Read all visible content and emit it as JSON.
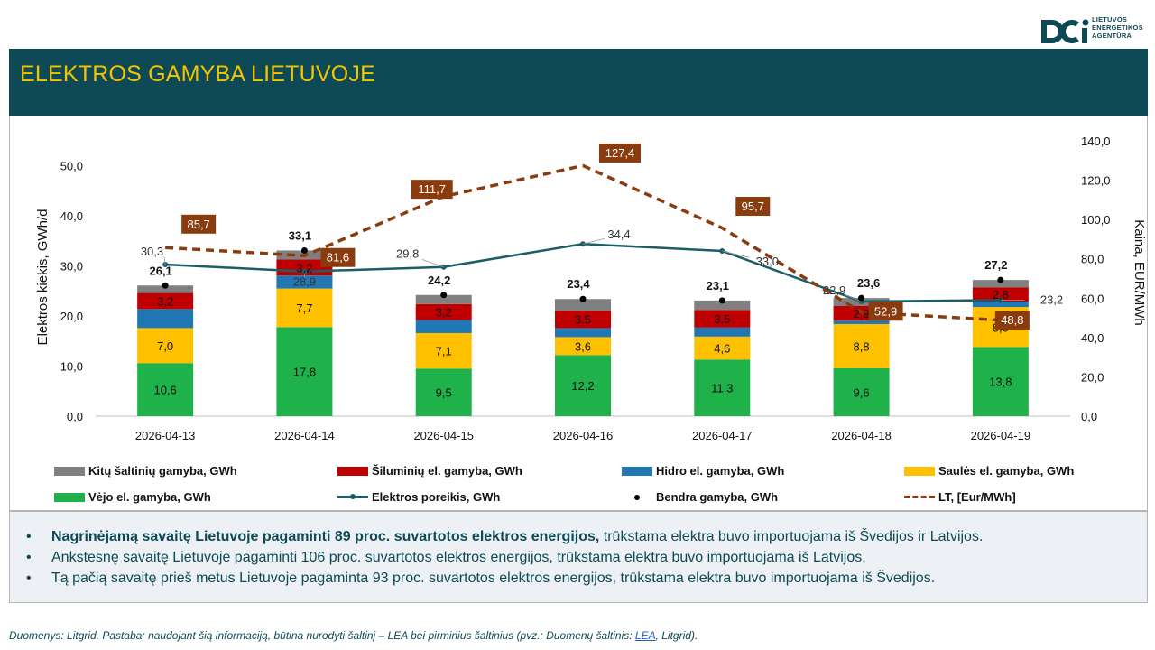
{
  "header": {
    "title": "ELEKTROS GAMYBA LIETUVOJE",
    "logo_text_1": "LIETUVOS",
    "logo_text_2": "ENERGETIKOS",
    "logo_text_3": "AGENTŪRA"
  },
  "colors": {
    "brand": "#0d4a55",
    "title_accent": "#f4c400",
    "wind": "#1fb14a",
    "solar": "#ffc000",
    "hydro": "#1f78b4",
    "thermal": "#c00000",
    "other": "#808080",
    "demand": "#1b5e66",
    "price": "#8b3c0e"
  },
  "chart_data": {
    "type": "bar",
    "stacked": true,
    "categories": [
      "2026-04-13",
      "2026-04-14",
      "2026-04-15",
      "2026-04-16",
      "2026-04-17",
      "2026-04-18",
      "2026-04-19"
    ],
    "ylabel": "Elektros kiekis, GWh/d",
    "y2label": "Kaina, EUR/MWh",
    "ylim": [
      0,
      55
    ],
    "y_ticks": [
      "0,0",
      "10,0",
      "20,0",
      "30,0",
      "40,0",
      "50,0"
    ],
    "y2lim": [
      0,
      140
    ],
    "y2_ticks": [
      "0,0",
      "20,0",
      "40,0",
      "60,0",
      "80,0",
      "100,0",
      "120,0",
      "140,0"
    ],
    "series": [
      {
        "name": "Vėjo el. gamyba, GWh",
        "key": "wind",
        "values": [
          10.6,
          17.8,
          9.5,
          12.2,
          11.3,
          9.6,
          13.8
        ],
        "labels": [
          "10,6",
          "17,8",
          "9,5",
          "12,2",
          "11,3",
          "9,6",
          "13,8"
        ]
      },
      {
        "name": "Saulės el. gamyba, GWh",
        "key": "solar",
        "values": [
          7.0,
          7.7,
          7.1,
          3.6,
          4.6,
          8.8,
          8.0
        ],
        "labels": [
          "7,0",
          "7,7",
          "7,1",
          "3,6",
          "4,6",
          "8,8",
          "8,0"
        ]
      },
      {
        "name": "Hidro el. gamyba, GWh",
        "key": "hydro",
        "values": [
          3.8,
          2.6,
          2.6,
          1.8,
          1.8,
          0.7,
          1.1
        ],
        "labels": [
          "",
          "",
          "",
          "",
          "",
          "",
          ""
        ]
      },
      {
        "name": "Šiluminių el. gamyba, GWh",
        "key": "thermal",
        "values": [
          3.2,
          3.2,
          3.2,
          3.5,
          3.5,
          2.9,
          2.8
        ],
        "labels": [
          "3,2",
          "3,2",
          "3,2",
          "3,5",
          "3,5",
          "2,9",
          "2,8"
        ]
      },
      {
        "name": "Kitų šaltinių gamyba,  GWh",
        "key": "other",
        "values": [
          1.5,
          1.8,
          1.8,
          2.3,
          1.9,
          1.6,
          1.5
        ],
        "labels": [
          "",
          "",
          "",
          "",
          "",
          "",
          ""
        ]
      }
    ],
    "total": {
      "name": "Bendra gamyba, GWh",
      "values": [
        26.1,
        33.1,
        24.2,
        23.4,
        23.1,
        23.6,
        27.2
      ],
      "labels": [
        "26,1",
        "33,1",
        "24,2",
        "23,4",
        "23,1",
        "23,6",
        "27,2"
      ]
    },
    "demand": {
      "name": "Elektros poreikis, GWh",
      "values": [
        30.3,
        28.9,
        29.8,
        34.4,
        33.0,
        22.9,
        23.2
      ],
      "labels": [
        "30,3",
        "28,9",
        "29,8",
        "34,4",
        "33,0",
        "22,9",
        "23,2"
      ]
    },
    "price": {
      "name": "LT, [Eur/MWh]",
      "values": [
        85.7,
        81.6,
        111.7,
        127.4,
        95.7,
        52.9,
        48.8
      ],
      "labels": [
        "85,7",
        "81,6",
        "111,7",
        "127,4",
        "95,7",
        "52,9",
        "48,8"
      ]
    }
  },
  "legend": {
    "other": "Kitų šaltinių gamyba,  GWh",
    "thermal": "Šiluminių el. gamyba, GWh",
    "hydro": "Hidro el. gamyba, GWh",
    "solar": "Saulės el. gamyba, GWh",
    "wind": "Vėjo el. gamyba, GWh",
    "demand": "Elektros poreikis, GWh",
    "total": "Bendra gamyba, GWh",
    "price": "LT, [Eur/MWh]"
  },
  "notes": [
    {
      "bold": "Nagrinėjamą savaitę Lietuvoje pagaminti 89 proc. suvartotos elektros energijos,",
      "rest": " trūkstama elektra buvo importuojama iš Švedijos ir Latvijos."
    },
    {
      "bold": "",
      "rest": "Ankstesnę savaitę Lietuvoje pagaminti 106 proc. suvartotos elektros energijos, trūkstama elektra buvo importuojama iš Latvijos."
    },
    {
      "bold": "",
      "rest": "Tą pačią savaitę prieš metus Lietuvoje pagaminta 93 proc. suvartotos elektros energijos, trūkstama elektra buvo importuojama iš Švedijos."
    }
  ],
  "bullet": "•",
  "footer": {
    "text": "Duomenys: Litgrid. Pastaba: naudojant šią informaciją, būtina nurodyti šaltinį – LEA bei pirminius šaltinius (pvz.: Duomenų šaltinis: ",
    "link": "LEA",
    "end": ", Litgrid)."
  }
}
